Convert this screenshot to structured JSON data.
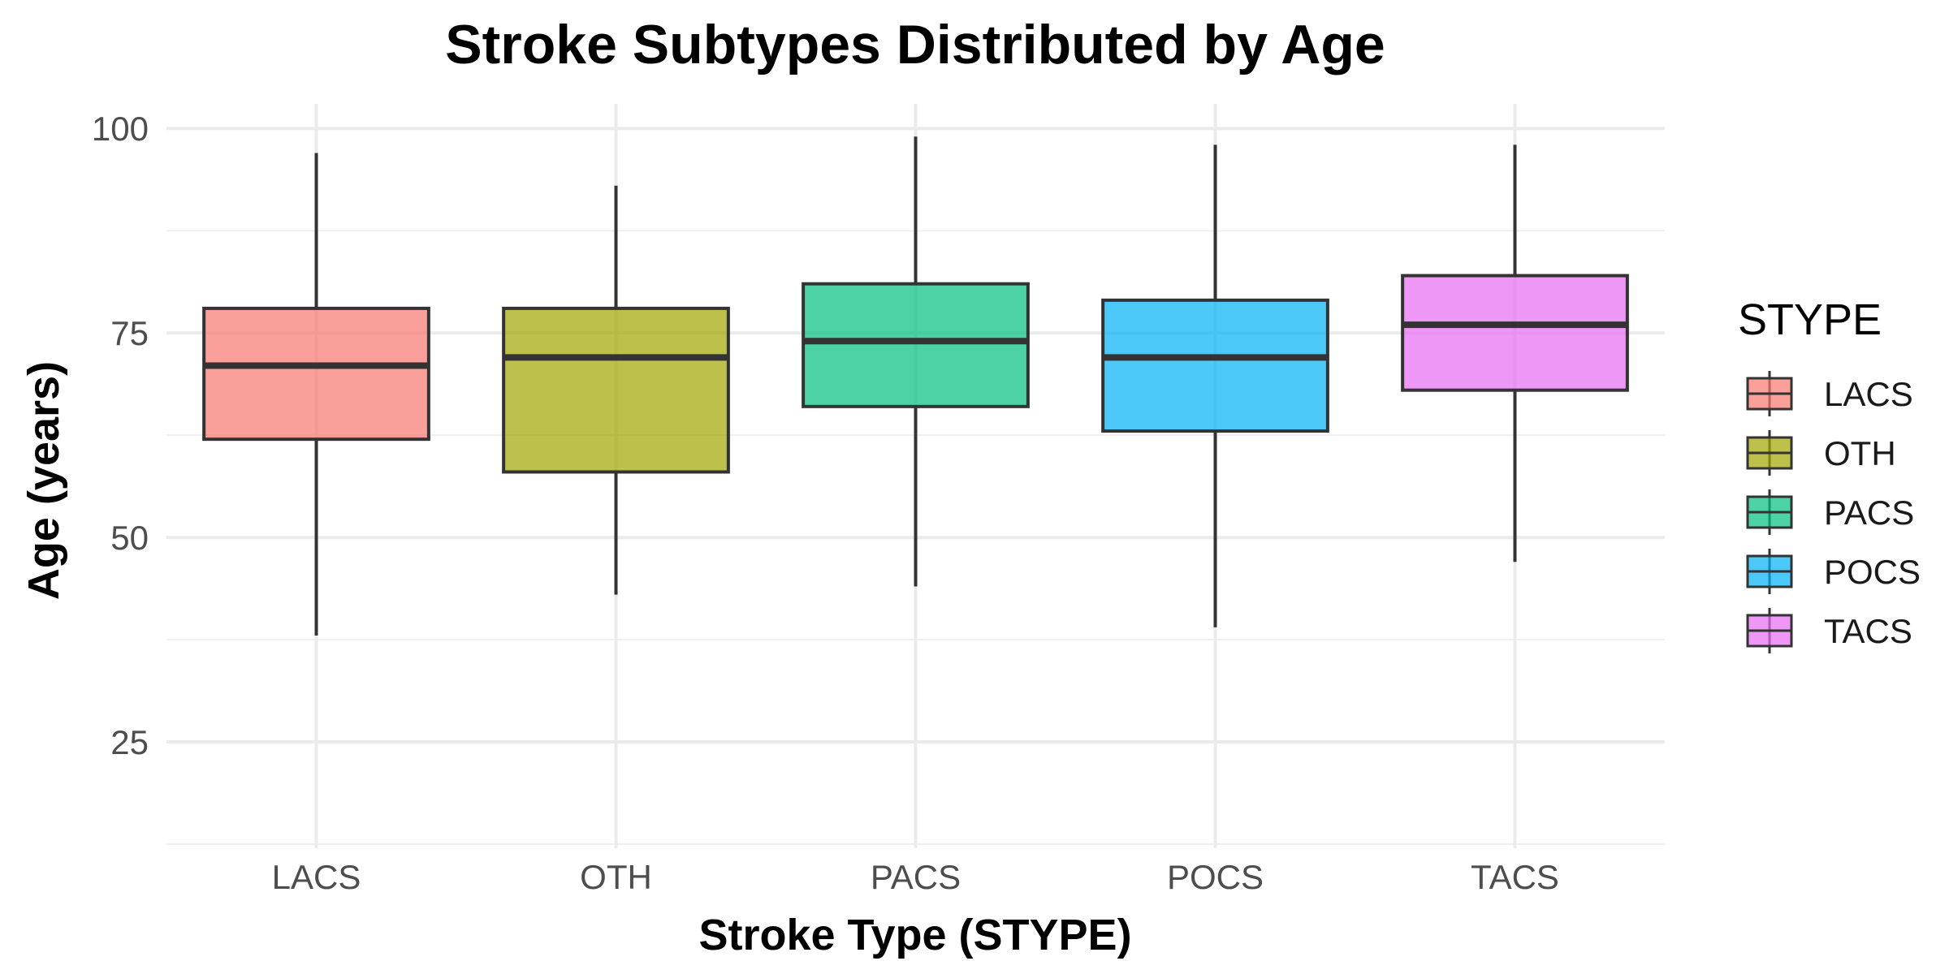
{
  "chart_data": {
    "type": "boxplot",
    "title": "Stroke Subtypes Distributed by Age",
    "xlabel": "Stroke Type (STYPE)",
    "ylabel": "Age (years)",
    "ylim": [
      12,
      103
    ],
    "yticks": [
      25,
      50,
      75,
      100
    ],
    "grid": true,
    "legend": {
      "title": "STYPE",
      "placement": "right"
    },
    "categories": [
      "LACS",
      "OTH",
      "PACS",
      "POCS",
      "TACS"
    ],
    "boxes": [
      {
        "name": "LACS",
        "min": 38,
        "q1": 62,
        "median": 71,
        "q3": 78,
        "max": 97,
        "color": "#F8766D"
      },
      {
        "name": "OTH",
        "min": 43,
        "q1": 58,
        "median": 72,
        "q3": 78,
        "max": 93,
        "color": "#A3A500"
      },
      {
        "name": "PACS",
        "min": 44,
        "q1": 66,
        "median": 74,
        "q3": 81,
        "max": 99,
        "color": "#00BF7D"
      },
      {
        "name": "POCS",
        "min": 39,
        "q1": 63,
        "median": 72,
        "q3": 79,
        "max": 98,
        "color": "#00B0F6"
      },
      {
        "name": "TACS",
        "min": 47,
        "q1": 68,
        "median": 76,
        "q3": 82,
        "max": 98,
        "color": "#E76BF3"
      }
    ]
  }
}
